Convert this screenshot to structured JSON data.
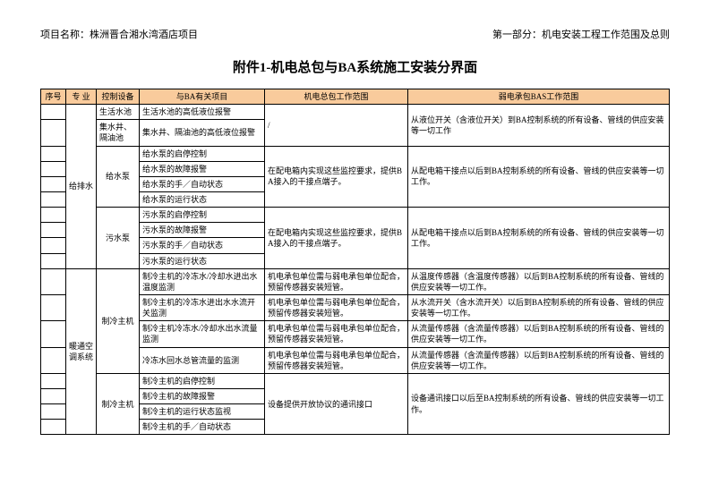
{
  "header": {
    "project_label": "项目名称：",
    "project_name": "株洲晋合湘水湾酒店项目",
    "part_label": "第一部分：",
    "part_name": "机电安装工程工作范围及总则"
  },
  "title": "附件1-机电总包与BA系统施工安装分界面",
  "columns": {
    "c1": "序号",
    "c2": "专 业",
    "c3": "控制设备",
    "c4": "与BA有关项目",
    "c5": "机电总包工作范围",
    "c6": "弱电承包BAS工作范围"
  },
  "sections": {
    "plumbing": {
      "label": "给排水",
      "d1": {
        "dev": "生活水池",
        "ba": "生活水池的高低液位报警",
        "me": "/",
        "bas": "从液位开关（含液位开关）到BA控制系统的所有设备、管线的供应安装等一切工作"
      },
      "d2": {
        "dev": "集水井、隔油池",
        "ba": "集水井、隔油池的高低液位报警"
      },
      "supply_pump": {
        "dev": "给水泵",
        "r1": "给水泵的启停控制",
        "r2": "给水泵的故障报警",
        "r3": "给水泵的手／自动状态",
        "r4": "给水泵的运行状态",
        "me": "在配电箱内实现这些监控要求，提供BA接入的干接点端子。",
        "bas": "从配电箱干接点以后到BA控制系统的所有设备、管线的供应安装等一切工作。"
      },
      "sewage_pump": {
        "dev": "污水泵",
        "r1": "污水泵的启停控制",
        "r2": "污水泵的故障报警",
        "r3": "污水泵的手／自动状态",
        "r4": "污水泵的运行状态",
        "me": "在配电箱内实现这些监控要求，提供BA接入的干接点端子。",
        "bas": "从配电箱干接点以后到BA控制系统的所有设备、管线的供应安装等一切工作。"
      }
    },
    "hvac": {
      "label": "暖通空调系统",
      "chiller1": {
        "dev": "制冷主机",
        "r1_ba": "制冷主机的冷冻水/冷却水进出水温度监测",
        "r1_me": "机电承包单位需与弱电承包单位配合，预留传感器安装短管。",
        "r1_bas": "从温度传感器（含温度传感器）以后到BA控制系统的所有设备、管线的供应安装等一切工作。",
        "r2_ba": "制冷主机的冷冻水进出水水流开关监测",
        "r2_me": "机电承包单位需与弱电承包单位配合，预留传感器安装短管。",
        "r2_bas": "从水流开关（含水流开关）以后到BA控制系统的所有设备、管线的供应安装等一切工作。",
        "r3_ba": "制冷主机冷冻水/冷却水出水流量监测",
        "r3_me": "机电承包单位需与弱电承包单位配合，预留传感器安装短管。",
        "r3_bas": "从流量传感器（含流量传感器）以后到BA控制系统的所有设备、管线的供应安装等一切工作。",
        "r4_ba": "冷冻水回水总管流量的监测",
        "r4_me": "机电承包单位需与弱电承包单位配合，预留传感器安装短管。",
        "r4_bas": "从流量传感器（含流量传感器）以后到BA控制系统的所有设备、管线的供应安装等一切工作。"
      },
      "chiller2": {
        "dev": "制冷主机",
        "r1": "制冷主机的启停控制",
        "r2": "制冷主机的故障报警",
        "r3": "制冷主机的运行状态监视",
        "r4": "制冷主机的手／自动状态",
        "me": "设备提供开放协议的通讯接口",
        "bas": "设备通讯接口以后至BA控制系统的所有设备、管线的供应安装等一切工作。"
      }
    }
  },
  "style": {
    "header_bg": "#f9cb9c",
    "border_color": "#000000",
    "font_size_body": 9,
    "font_size_title": 15,
    "font_size_header": 11
  }
}
